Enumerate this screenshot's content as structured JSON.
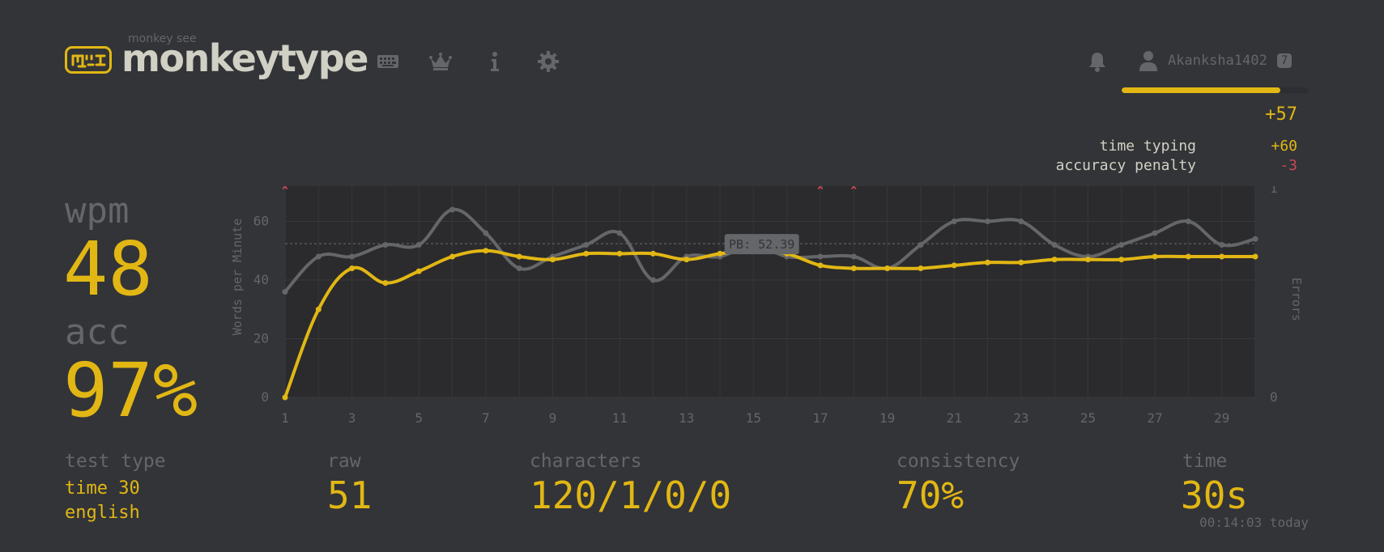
{
  "header": {
    "brand_small": "monkey see",
    "brand": "monkeytype",
    "nav": [
      {
        "icon": "keyboard-icon"
      },
      {
        "icon": "crown-icon"
      },
      {
        "icon": "info-icon"
      },
      {
        "icon": "gear-icon"
      }
    ],
    "notifications_icon": "bell-icon",
    "user": {
      "name": "Akanksha1402",
      "level": "7",
      "xp_fraction": 0.85
    }
  },
  "xp": {
    "total": "+57",
    "breakdown": [
      {
        "label": "time typing",
        "value": "+60",
        "color": "#e2b714"
      },
      {
        "label": "accuracy penalty",
        "value": "-3",
        "color": "#ca4754"
      }
    ]
  },
  "stats": {
    "wpm_label": "wpm",
    "wpm": "48",
    "acc_label": "acc",
    "acc": "97%",
    "test_type_label": "test type",
    "test_type_lines": [
      "time 30",
      "english"
    ],
    "raw_label": "raw",
    "raw": "51",
    "characters_label": "characters",
    "characters": "120/1/0/0",
    "consistency_label": "consistency",
    "consistency": "70%",
    "time_label": "time",
    "time": "30s",
    "timestamp": "00:14:03 today"
  },
  "colors": {
    "accent": "#e2b714",
    "raw_line": "#646669",
    "error": "#ca4754",
    "bg": "#323437",
    "text": "#d1d0c5"
  },
  "chart_data": {
    "type": "line",
    "x": [
      1,
      2,
      3,
      4,
      5,
      6,
      7,
      8,
      9,
      10,
      11,
      12,
      13,
      14,
      15,
      16,
      17,
      18,
      19,
      20,
      21,
      22,
      23,
      24,
      25,
      26,
      27,
      28,
      29,
      30
    ],
    "x_ticks": [
      "1",
      "3",
      "5",
      "7",
      "9",
      "11",
      "13",
      "15",
      "17",
      "19",
      "21",
      "23",
      "25",
      "27",
      "29"
    ],
    "y_ticks": [
      "0",
      "20",
      "40",
      "60"
    ],
    "ylim": [
      0,
      72
    ],
    "ylabel": "Words per Minute",
    "y2label": "Errors",
    "y2_ticks": [
      "0",
      "1"
    ],
    "series": [
      {
        "name": "wpm",
        "color": "#e2b714",
        "values": [
          0,
          30,
          44,
          39,
          43,
          48,
          50,
          48,
          47,
          49,
          49,
          49,
          47,
          49,
          50,
          49,
          45,
          44,
          44,
          44,
          45,
          46,
          46,
          47,
          47,
          47,
          48,
          48,
          48,
          48
        ]
      },
      {
        "name": "raw",
        "color": "#646669",
        "values": [
          36,
          48,
          48,
          52,
          52,
          64,
          56,
          44,
          48,
          52,
          56,
          40,
          48,
          48,
          52,
          48,
          48,
          48,
          44,
          52,
          60,
          60,
          60,
          52,
          48,
          52,
          56,
          60,
          52,
          54
        ]
      }
    ],
    "errors_at": [
      1,
      17,
      18
    ],
    "pb": {
      "value": 52.39,
      "label": "PB: 52.39"
    }
  }
}
